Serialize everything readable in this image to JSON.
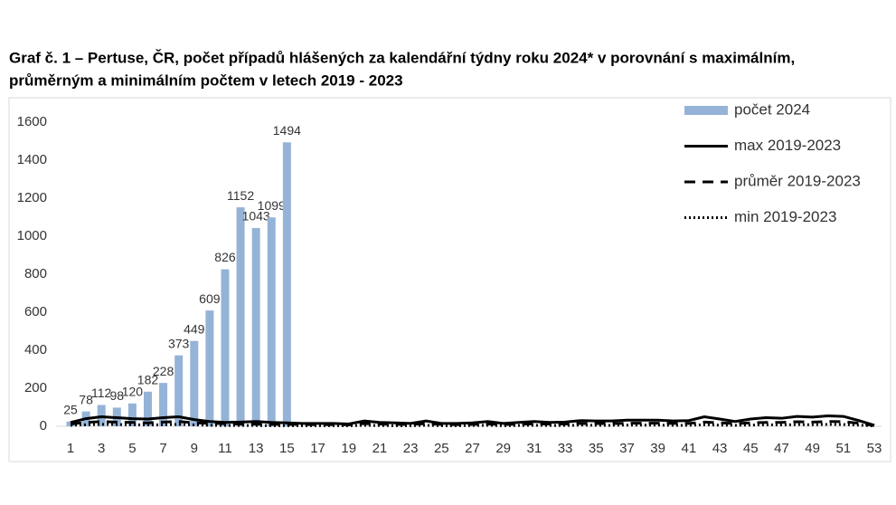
{
  "chart_data": {
    "type": "bar",
    "title": "Graf č. 1 – Pertuse, ČR, počet případů hlášených za kalendářní týdny roku 2024* v porovnání s maximálním,",
    "subtitle": "průměrným a minimálním počtem v letech 2019 - 2023",
    "categories": [
      "1",
      null,
      "3",
      null,
      "5",
      null,
      "7",
      null,
      "9",
      null,
      "11",
      null,
      "13",
      null,
      "15",
      null,
      "17",
      null,
      "19",
      null,
      "21",
      null,
      "23",
      null,
      "25",
      null,
      "27",
      null,
      "29",
      null,
      "31",
      null,
      "33",
      null,
      "35",
      null,
      "37",
      null,
      "39",
      null,
      "41",
      null,
      "43",
      null,
      "45",
      null,
      "47",
      null,
      "49",
      null,
      "51",
      null,
      "53"
    ],
    "series": [
      {
        "name": "počet 2024",
        "type": "bar",
        "color": "#95b3d7",
        "values": [
          25,
          78,
          112,
          98,
          120,
          182,
          228,
          373,
          449,
          609,
          826,
          1152,
          1043,
          1099,
          1494,
          null,
          null,
          null,
          null,
          null,
          null,
          null,
          null,
          null,
          null,
          null,
          null,
          null,
          null,
          null,
          null,
          null,
          null,
          null,
          null,
          null,
          null,
          null,
          null,
          null,
          null,
          null,
          null,
          null,
          null,
          null,
          null,
          null,
          null,
          null,
          null,
          null,
          null
        ]
      },
      {
        "name": "max 2019-2023",
        "type": "line",
        "style": "solid",
        "color": "#000000",
        "values": [
          20,
          40,
          50,
          45,
          40,
          38,
          45,
          50,
          35,
          25,
          20,
          22,
          25,
          20,
          18,
          15,
          15,
          15,
          12,
          28,
          20,
          18,
          15,
          28,
          15,
          15,
          18,
          25,
          15,
          20,
          25,
          20,
          22,
          30,
          28,
          28,
          32,
          32,
          32,
          28,
          30,
          50,
          38,
          25,
          38,
          45,
          42,
          52,
          48,
          55,
          52,
          30,
          5
        ]
      },
      {
        "name": "průměr 2019-2023",
        "type": "line",
        "style": "dashed",
        "color": "#000000",
        "values": [
          12,
          20,
          25,
          22,
          20,
          18,
          22,
          25,
          18,
          15,
          14,
          12,
          12,
          10,
          10,
          10,
          9,
          9,
          8,
          14,
          12,
          10,
          10,
          14,
          10,
          9,
          10,
          12,
          10,
          11,
          13,
          12,
          12,
          15,
          14,
          14,
          16,
          16,
          16,
          15,
          15,
          22,
          18,
          14,
          18,
          20,
          20,
          24,
          22,
          25,
          24,
          16,
          4
        ]
      },
      {
        "name": "min 2019-2023",
        "type": "line",
        "style": "dotted",
        "color": "#000000",
        "values": [
          5,
          8,
          10,
          9,
          8,
          7,
          8,
          10,
          7,
          5,
          4,
          4,
          4,
          3,
          3,
          3,
          3,
          3,
          3,
          5,
          4,
          3,
          3,
          5,
          3,
          3,
          4,
          5,
          3,
          4,
          5,
          4,
          4,
          6,
          5,
          5,
          6,
          6,
          6,
          5,
          5,
          8,
          6,
          5,
          6,
          8,
          7,
          9,
          8,
          10,
          9,
          6,
          2
        ]
      }
    ],
    "ylim": [
      0,
      1600
    ],
    "yticks": [
      0,
      200,
      400,
      600,
      800,
      1000,
      1200,
      1400,
      1600
    ],
    "grid": false,
    "legend": "top-right"
  }
}
